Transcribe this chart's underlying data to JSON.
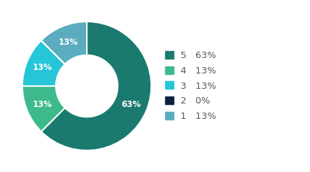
{
  "labels": [
    "5",
    "4",
    "3",
    "2",
    "1"
  ],
  "values": [
    62.5,
    12.5,
    12.5,
    0.01,
    12.5
  ],
  "display_pcts": [
    "63%",
    "13%",
    "13%",
    "0%",
    "13%"
  ],
  "colors": [
    "#1a7a6e",
    "#3dba8c",
    "#26c6d8",
    "#0d2240",
    "#5aacbe"
  ],
  "legend_labels": [
    "5   63%",
    "4   13%",
    "3   13%",
    "2   0%",
    "1   13%"
  ],
  "background_color": "#ffffff",
  "text_color": "#ffffff",
  "label_fontsize": 8.5,
  "legend_fontsize": 9.5
}
